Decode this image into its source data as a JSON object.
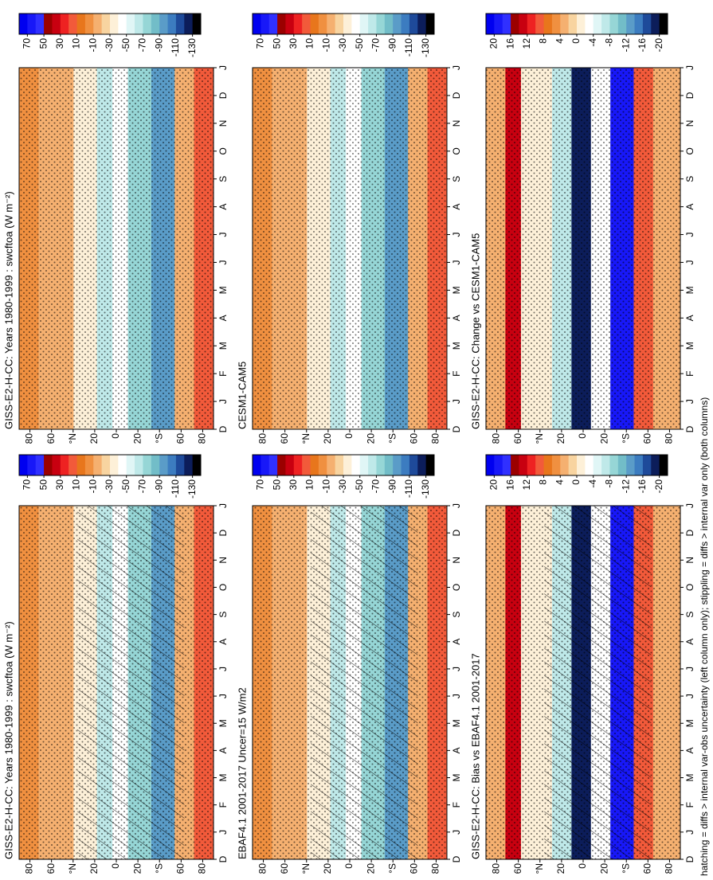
{
  "chart_data": [
    {
      "type": "contour",
      "title": "GISS-E2-H-CC: Years 1980-1999 : swcftoa (W m⁻²)",
      "hatching": true,
      "stippling": true,
      "categories": [
        "D",
        "J",
        "F",
        "M",
        "A",
        "M",
        "J",
        "J",
        "A",
        "S",
        "O",
        "N",
        "D",
        "J"
      ],
      "ylim": [
        -90,
        90
      ],
      "yticks": [
        {
          "value": 80,
          "label": "80"
        },
        {
          "value": 60,
          "label": "60"
        },
        {
          "value": 40,
          "label": "°N"
        },
        {
          "value": 20,
          "label": "20"
        },
        0,
        {
          "value": -20,
          "label": "20"
        },
        {
          "value": -40,
          "label": "°S"
        },
        {
          "value": -60,
          "label": "60"
        },
        {
          "value": -80,
          "label": "80"
        }
      ],
      "colorbar": {
        "lim": [
          -140,
          80
        ],
        "ticks": [
          70,
          50,
          30,
          10,
          -10,
          -30,
          -50,
          -70,
          -90,
          -110,
          -130
        ],
        "colors": [
          "#0000f0",
          "#1818f8",
          "#3030ff",
          "#9b0000",
          "#c80010",
          "#ee2222",
          "#f25a3a",
          "#e8761c",
          "#f09040",
          "#f5b070",
          "#f8d4a0",
          "#fdf0d8",
          "#ffffff",
          "#e0f6f6",
          "#bfe9e9",
          "#96d6d6",
          "#72bdc8",
          "#5a9cc8",
          "#3c7cc0",
          "#1e4a9a",
          "#0c1d5a",
          "#000000"
        ]
      }
    },
    {
      "type": "contour",
      "title": "GISS-E2-H-CC: Years 1980-1999 : swcftoa (W m⁻²)",
      "hatching": false,
      "stippling": true,
      "categories": [
        "D",
        "J",
        "F",
        "M",
        "A",
        "M",
        "J",
        "J",
        "A",
        "S",
        "O",
        "N",
        "D",
        "J"
      ],
      "ylim": [
        -90,
        90
      ],
      "yticks": [
        {
          "value": 80,
          "label": "80"
        },
        {
          "value": 60,
          "label": "60"
        },
        {
          "value": 40,
          "label": "°N"
        },
        {
          "value": 20,
          "label": "20"
        },
        0,
        {
          "value": -20,
          "label": "20"
        },
        {
          "value": -40,
          "label": "°S"
        },
        {
          "value": -60,
          "label": "60"
        },
        {
          "value": -80,
          "label": "80"
        }
      ],
      "colorbar": {
        "lim": [
          -140,
          80
        ],
        "ticks": [
          70,
          50,
          30,
          10,
          -10,
          -30,
          -50,
          -70,
          -90,
          -110,
          -130
        ],
        "colors": [
          "#0000f0",
          "#1818f8",
          "#3030ff",
          "#9b0000",
          "#c80010",
          "#ee2222",
          "#f25a3a",
          "#e8761c",
          "#f09040",
          "#f5b070",
          "#f8d4a0",
          "#fdf0d8",
          "#ffffff",
          "#e0f6f6",
          "#bfe9e9",
          "#96d6d6",
          "#72bdc8",
          "#5a9cc8",
          "#3c7cc0",
          "#1e4a9a",
          "#0c1d5a",
          "#000000"
        ]
      }
    },
    {
      "type": "contour",
      "title": "EBAF4.1 2001-2017 Uncer=15 W/m2",
      "hatching": true,
      "stippling": true,
      "categories": [
        "D",
        "J",
        "F",
        "M",
        "A",
        "M",
        "J",
        "J",
        "A",
        "S",
        "O",
        "N",
        "D",
        "J"
      ],
      "ylim": [
        -90,
        90
      ],
      "yticks": [
        {
          "value": 80,
          "label": "80"
        },
        {
          "value": 60,
          "label": "60"
        },
        {
          "value": 40,
          "label": "°N"
        },
        {
          "value": 20,
          "label": "20"
        },
        0,
        {
          "value": -20,
          "label": "20"
        },
        {
          "value": -40,
          "label": "°S"
        },
        {
          "value": -60,
          "label": "60"
        },
        {
          "value": -80,
          "label": "80"
        }
      ],
      "colorbar": {
        "lim": [
          -140,
          80
        ],
        "ticks": [
          70,
          50,
          30,
          10,
          -10,
          -30,
          -50,
          -70,
          -90,
          -110,
          -130
        ],
        "colors": [
          "#0000f0",
          "#1818f8",
          "#3030ff",
          "#9b0000",
          "#c80010",
          "#ee2222",
          "#f25a3a",
          "#e8761c",
          "#f09040",
          "#f5b070",
          "#f8d4a0",
          "#fdf0d8",
          "#ffffff",
          "#e0f6f6",
          "#bfe9e9",
          "#96d6d6",
          "#72bdc8",
          "#5a9cc8",
          "#3c7cc0",
          "#1e4a9a",
          "#0c1d5a",
          "#000000"
        ]
      }
    },
    {
      "type": "contour",
      "title": "CESM1-CAM5",
      "hatching": false,
      "stippling": true,
      "categories": [
        "D",
        "J",
        "F",
        "M",
        "A",
        "M",
        "J",
        "J",
        "A",
        "S",
        "O",
        "N",
        "D",
        "J"
      ],
      "ylim": [
        -90,
        90
      ],
      "yticks": [
        {
          "value": 80,
          "label": "80"
        },
        {
          "value": 60,
          "label": "60"
        },
        {
          "value": 40,
          "label": "°N"
        },
        {
          "value": 20,
          "label": "20"
        },
        0,
        {
          "value": -20,
          "label": "20"
        },
        {
          "value": -40,
          "label": "°S"
        },
        {
          "value": -60,
          "label": "60"
        },
        {
          "value": -80,
          "label": "80"
        }
      ],
      "colorbar": {
        "lim": [
          -140,
          80
        ],
        "ticks": [
          70,
          50,
          30,
          10,
          -10,
          -30,
          -50,
          -70,
          -90,
          -110,
          -130
        ],
        "colors": [
          "#0000f0",
          "#1818f8",
          "#3030ff",
          "#9b0000",
          "#c80010",
          "#ee2222",
          "#f25a3a",
          "#e8761c",
          "#f09040",
          "#f5b070",
          "#f8d4a0",
          "#fdf0d8",
          "#ffffff",
          "#e0f6f6",
          "#bfe9e9",
          "#96d6d6",
          "#72bdc8",
          "#5a9cc8",
          "#3c7cc0",
          "#1e4a9a",
          "#0c1d5a",
          "#000000"
        ]
      }
    },
    {
      "type": "contour",
      "title": "GISS-E2-H-CC: Bias vs EBAF4.1 2001-2017",
      "hatching": true,
      "stippling": true,
      "categories": [
        "D",
        "J",
        "F",
        "M",
        "A",
        "M",
        "J",
        "J",
        "A",
        "S",
        "O",
        "N",
        "D",
        "J"
      ],
      "ylim": [
        -90,
        90
      ],
      "yticks": [
        {
          "value": 80,
          "label": "80"
        },
        {
          "value": 60,
          "label": "60"
        },
        {
          "value": 40,
          "label": "°N"
        },
        {
          "value": 20,
          "label": "20"
        },
        0,
        {
          "value": -20,
          "label": "20"
        },
        {
          "value": -40,
          "label": "°S"
        },
        {
          "value": -60,
          "label": "60"
        },
        {
          "value": -80,
          "label": "80"
        }
      ],
      "colorbar": {
        "lim": [
          -22,
          22
        ],
        "ticks": [
          20,
          16,
          12,
          8,
          4,
          0,
          -4,
          -8,
          -12,
          -16,
          -20
        ],
        "colors": [
          "#0000f0",
          "#1818f8",
          "#3030ff",
          "#9b0000",
          "#c80010",
          "#ee2222",
          "#f25a3a",
          "#e8761c",
          "#f09040",
          "#f5b070",
          "#f8d4a0",
          "#fdf0d8",
          "#ffffff",
          "#e0f6f6",
          "#bfe9e9",
          "#96d6d6",
          "#72bdc8",
          "#5a9cc8",
          "#3c7cc0",
          "#1e4a9a",
          "#0c1d5a",
          "#000000"
        ]
      }
    },
    {
      "type": "contour",
      "title": "GISS-E2-H-CC: Change vs CESM1-CAM5",
      "hatching": false,
      "stippling": true,
      "categories": [
        "D",
        "J",
        "F",
        "M",
        "A",
        "M",
        "J",
        "J",
        "A",
        "S",
        "O",
        "N",
        "D",
        "J"
      ],
      "ylim": [
        -90,
        90
      ],
      "yticks": [
        {
          "value": 80,
          "label": "80"
        },
        {
          "value": 60,
          "label": "60"
        },
        {
          "value": 40,
          "label": "°N"
        },
        {
          "value": 20,
          "label": "20"
        },
        0,
        {
          "value": -20,
          "label": "20"
        },
        {
          "value": -40,
          "label": "°S"
        },
        {
          "value": -60,
          "label": "60"
        },
        {
          "value": -80,
          "label": "80"
        }
      ],
      "colorbar": {
        "lim": [
          -22,
          22
        ],
        "ticks": [
          20,
          16,
          12,
          8,
          4,
          0,
          -4,
          -8,
          -12,
          -16,
          -20
        ],
        "colors": [
          "#0000f0",
          "#1818f8",
          "#3030ff",
          "#9b0000",
          "#c80010",
          "#ee2222",
          "#f25a3a",
          "#e8761c",
          "#f09040",
          "#f5b070",
          "#f8d4a0",
          "#fdf0d8",
          "#ffffff",
          "#e0f6f6",
          "#bfe9e9",
          "#96d6d6",
          "#72bdc8",
          "#5a9cc8",
          "#3c7cc0",
          "#1e4a9a",
          "#0c1d5a",
          "#000000"
        ]
      }
    }
  ],
  "footnote": "hatching = diffs > internal var-obs uncertainty (left column only); stippling = diffs > internal var only (both columns)"
}
